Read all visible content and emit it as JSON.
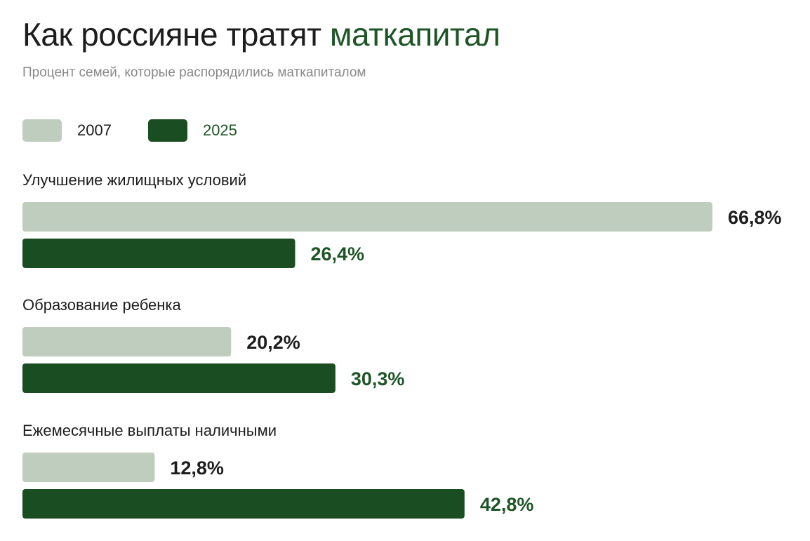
{
  "title": {
    "main": "Как россияне тратят",
    "accent": "маткапитал"
  },
  "subtitle": "Процент семей, которые распорядились маткапиталом",
  "colors": {
    "series_2007": "#bfcdbf",
    "series_2025": "#1b4d22",
    "accent_text": "#1e5527",
    "text": "#1d1d1d"
  },
  "chart_data": {
    "type": "bar",
    "orientation": "horizontal",
    "categories": [
      "Улучшение жилищных условий",
      "Образование ребенка",
      "Ежемесячные выплаты наличными"
    ],
    "series": [
      {
        "name": "2007",
        "values": [
          66.8,
          20.2,
          12.8
        ],
        "labels": [
          "66,8%",
          "20,2%",
          "12,8%"
        ]
      },
      {
        "name": "2025",
        "values": [
          26.4,
          30.3,
          42.8
        ],
        "labels": [
          "26,4%",
          "30,3%",
          "42,8%"
        ]
      }
    ],
    "title": "Как россияне тратят маткапитал",
    "legend_position": "top-left",
    "grid": false,
    "xlim": [
      0,
      66.8
    ]
  }
}
